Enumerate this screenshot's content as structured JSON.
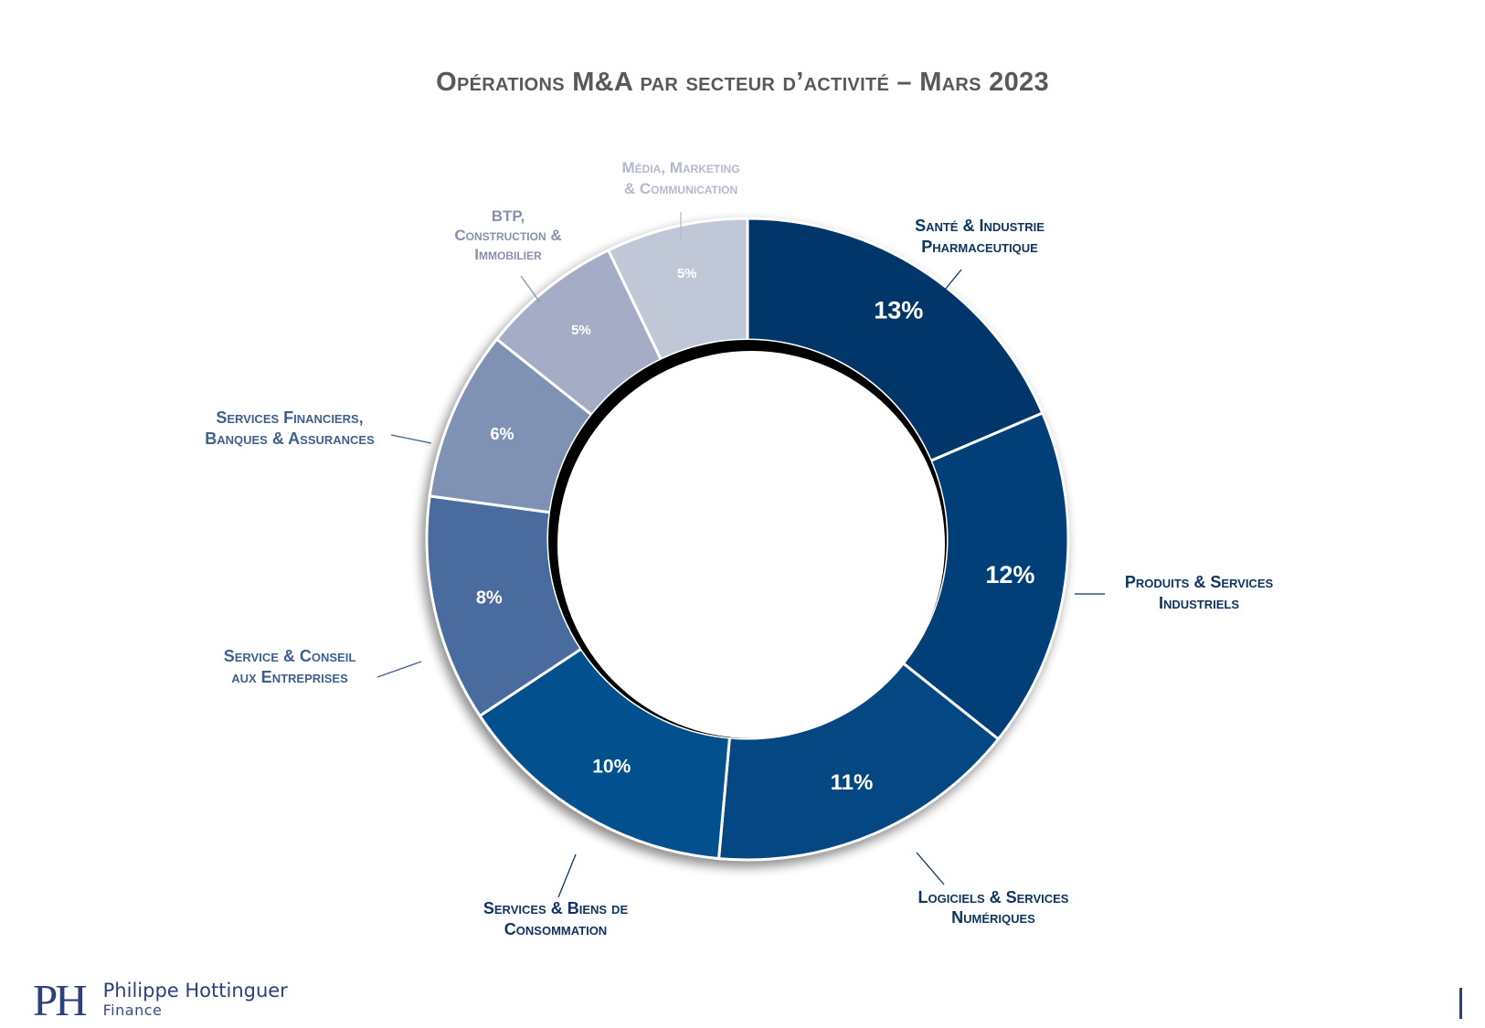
{
  "chart_data": {
    "type": "pie",
    "title": "Opérations M&A par secteur d’activité – Mars 2023",
    "donut": true,
    "value_unit": "%",
    "slices": [
      {
        "lines": [
          "Santé & Industrie",
          "Pharmaceutique"
        ],
        "value": 13,
        "label": "13%",
        "color": "#01366a"
      },
      {
        "lines": [
          "Produits & Services",
          "Industriels"
        ],
        "value": 12,
        "label": "12%",
        "color": "#013f78"
      },
      {
        "lines": [
          "Logiciels & Services",
          "Numériques"
        ],
        "value": 11,
        "label": "11%",
        "color": "#044782"
      },
      {
        "lines": [
          "Services & Biens de",
          "Consommation"
        ],
        "value": 10,
        "label": "10%",
        "color": "#03508f"
      },
      {
        "lines": [
          "Service & Conseil",
          "aux Entreprises"
        ],
        "value": 8,
        "label": "8%",
        "color": "#4a6b9e"
      },
      {
        "lines": [
          "Services Financiers,",
          "Banques & Assurances"
        ],
        "value": 6,
        "label": "6%",
        "color": "#8092b3"
      },
      {
        "lines": [
          "BTP,",
          "Construction &",
          "Immobilier"
        ],
        "value": 5,
        "label": "5%",
        "color": "#a5adc6"
      },
      {
        "lines": [
          "Média, Marketing",
          "& Communication"
        ],
        "value": 5,
        "label": "5%",
        "color": "#c0c7d6"
      }
    ],
    "label_colors": {
      "dark": "#0e3561",
      "mid": "#3f5f8f",
      "light": "#8891ab",
      "lightest": "#b4bacb"
    }
  },
  "brand": {
    "logo": "PH",
    "name": "Philippe Hottinguer",
    "sub": "Finance"
  }
}
